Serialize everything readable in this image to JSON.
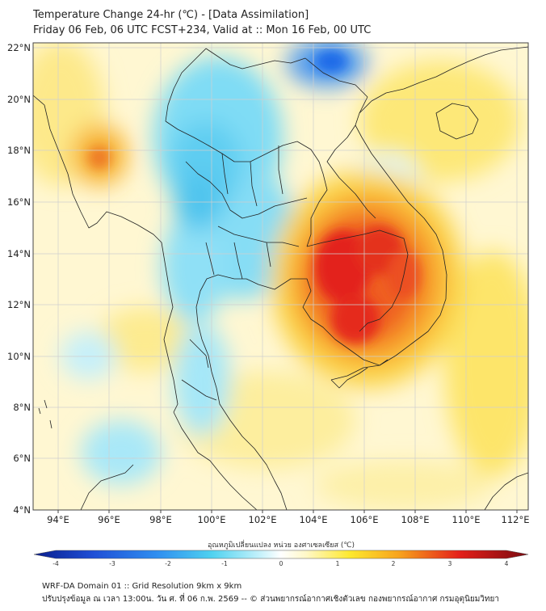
{
  "header": {
    "title_line1": "Temperature Change 24-hr (℃) - [Data Assimilation]",
    "title_line2": "Friday 06 Feb, 06 UTC FCST+234, Valid at :: Mon 16 Feb, 00 UTC"
  },
  "map": {
    "lon_ticks": [
      "94°E",
      "96°E",
      "98°E",
      "100°E",
      "102°E",
      "104°E",
      "106°E",
      "108°E",
      "110°E",
      "112°E"
    ],
    "lat_ticks": [
      "22°N",
      "20°N",
      "18°N",
      "16°N",
      "14°N",
      "12°N",
      "10°N",
      "8°N",
      "6°N",
      "4°N"
    ],
    "extent": {
      "lon_min": 93,
      "lon_max": 112.5,
      "lat_min": 4,
      "lat_max": 22.2
    }
  },
  "colorbar": {
    "label": "อุณหภูมิเปลี่ยนแปลง หน่วย องศาเซลเซียส (℃)",
    "ticks": [
      "-4",
      "-3",
      "-2",
      "-1",
      "0",
      "1",
      "2",
      "3",
      "4"
    ],
    "min": -4,
    "max": 4
  },
  "footer": {
    "line1": "WRF-DA Domain 01 :: Grid Resolution 9km x 9km",
    "line2": "ปรับปรุงข้อมูล ณ เวลา 13:00น. วัน ศ. ที่ 06 ก.พ. 2569 -- © ส่วนพยากรณ์อากาศเชิงตัวเลข กองพยากรณ์อากาศ กรมอุตุนิยมวิทยา"
  },
  "colors": {
    "hot": "#e4201a",
    "warm": "#fde82e",
    "neutral": "#fffbe8",
    "cool": "#4fd2f0",
    "cold": "#1f6ae8"
  }
}
